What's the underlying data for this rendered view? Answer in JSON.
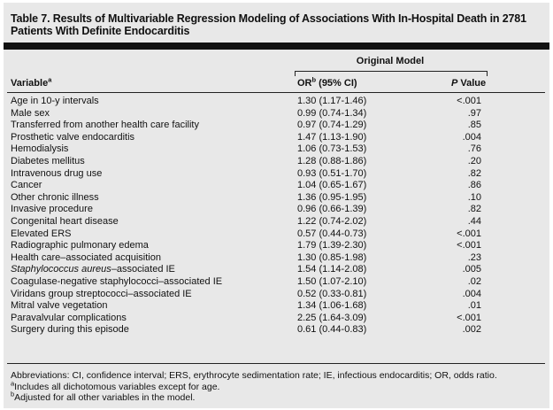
{
  "title": "Table 7. Results of Multivariable Regression Modeling of Associations With In-Hospital Death in 2781 Patients With Definite Endocarditis",
  "group_header": "Original Model",
  "columns": {
    "variable": "Variable",
    "variable_sup": "a",
    "or_prefix": "OR",
    "or_sup": "b",
    "or_suffix": " (95% CI)",
    "p_italic": "P",
    "p_rest": " Value"
  },
  "rows": [
    {
      "variable": "Age in 10-y intervals",
      "or": "1.30 (1.17-1.46)",
      "p": "<.001"
    },
    {
      "variable": "Male sex",
      "or": "0.99 (0.74-1.34)",
      "p": ".97"
    },
    {
      "variable": "Transferred from another health care facility",
      "or": "0.97 (0.74-1.29)",
      "p": ".85"
    },
    {
      "variable": "Prosthetic valve endocarditis",
      "or": "1.47 (1.13-1.90)",
      "p": ".004"
    },
    {
      "variable": "Hemodialysis",
      "or": "1.06 (0.73-1.53)",
      "p": ".76"
    },
    {
      "variable": "Diabetes mellitus",
      "or": "1.28 (0.88-1.86)",
      "p": ".20"
    },
    {
      "variable": "Intravenous drug use",
      "or": "0.93 (0.51-1.70)",
      "p": ".82"
    },
    {
      "variable": "Cancer",
      "or": "1.04 (0.65-1.67)",
      "p": ".86"
    },
    {
      "variable": "Other chronic illness",
      "or": "1.36 (0.95-1.95)",
      "p": ".10"
    },
    {
      "variable": "Invasive procedure",
      "or": "0.96 (0.66-1.39)",
      "p": ".82"
    },
    {
      "variable": "Congenital heart disease",
      "or": "1.22 (0.74-2.02)",
      "p": ".44"
    },
    {
      "variable": "Elevated ERS",
      "or": "0.57 (0.44-0.73)",
      "p": "<.001"
    },
    {
      "variable": "Radiographic pulmonary edema",
      "or": "1.79 (1.39-2.30)",
      "p": "<.001"
    },
    {
      "variable": "Health care–associated acquisition",
      "or": "1.30 (0.85-1.98)",
      "p": ".23"
    },
    {
      "variable_italic": "Staphylococcus aureus",
      "variable": "–associated IE",
      "or": "1.54 (1.14-2.08)",
      "p": ".005"
    },
    {
      "variable": "Coagulase-negative staphylococci–associated IE",
      "or": "1.50 (1.07-2.10)",
      "p": ".02"
    },
    {
      "variable": "Viridans group streptococci–associated IE",
      "or": "0.52 (0.33-0.81)",
      "p": ".004"
    },
    {
      "variable": "Mitral valve vegetation",
      "or": "1.34 (1.06-1.68)",
      "p": ".01"
    },
    {
      "variable": "Paravalvular complications",
      "or": "2.25 (1.64-3.09)",
      "p": "<.001"
    },
    {
      "variable": "Surgery during this episode",
      "or": "0.61 (0.44-0.83)",
      "p": ".002"
    }
  ],
  "footnotes": {
    "abbreviations": "Abbreviations: CI, confidence interval; ERS, erythrocyte sedimentation rate; IE, infectious endocarditis; OR, odds ratio.",
    "a_sup": "a",
    "a_text": "Includes all dichotomous variables except for age.",
    "b_sup": "b",
    "b_text": "Adjusted for all other variables in the model."
  }
}
